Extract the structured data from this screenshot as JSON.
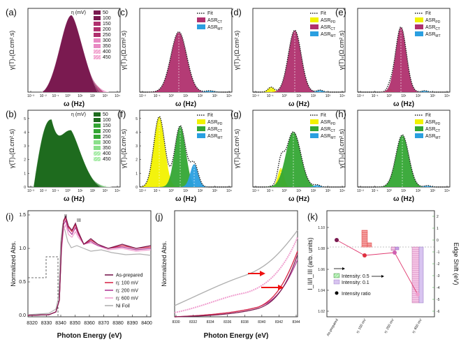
{
  "figure": {
    "panels_top": [
      {
        "id": "a",
        "label": "(a)",
        "type": "eta",
        "legend_title": "η (mV)",
        "legend": [
          "50",
          "100",
          "150",
          "200",
          "250",
          "300",
          "350",
          "400",
          "450"
        ],
        "ylabel": "γ(T)ₛ(Ω.cm².s)",
        "xlabel": "ω (Hz)",
        "yticks": [],
        "xticks": []
      },
      {
        "id": "c",
        "label": "(c)",
        "type": "asr",
        "legend": [
          {
            "key": "fit",
            "text": "Fit"
          },
          {
            "key": "ct",
            "text": "ASR",
            "sub": "CT"
          },
          {
            "key": "mt",
            "text": "ASR",
            "sub": "MT"
          }
        ],
        "ylabel": "γ(T)ₛ(Ω.cm².s)",
        "xlabel": "ω (Hz)",
        "yticks": [],
        "xticks": []
      },
      {
        "id": "d",
        "label": "(d)",
        "type": "asr",
        "legend": [
          {
            "key": "fit",
            "text": "Fit"
          },
          {
            "key": "pd",
            "text": "ASR",
            "sub": "PD"
          },
          {
            "key": "ct",
            "text": "ASR",
            "sub": "CT"
          },
          {
            "key": "mt",
            "text": "ASR",
            "sub": "MT"
          }
        ],
        "ylabel": "γ(T)ₛ(Ω.cm².s)",
        "xlabel": "ω (Hz)",
        "yticks": [],
        "xticks": []
      },
      {
        "id": "e",
        "label": "(e)",
        "type": "asr",
        "legend": [
          {
            "key": "fit",
            "text": "Fit"
          },
          {
            "key": "pd",
            "text": "ASR",
            "sub": "PD"
          },
          {
            "key": "ct",
            "text": "ASR",
            "sub": "CT"
          },
          {
            "key": "mt",
            "text": "ASR",
            "sub": "MT"
          }
        ],
        "ylabel": "γ(T)ₛ(Ω.cm².s)",
        "xlabel": "ω (Hz)",
        "yticks": [],
        "xticks": []
      }
    ],
    "panels_mid": [
      {
        "id": "b",
        "label": "(b)",
        "type": "eta",
        "legend_title": "η (mV)",
        "legend": [
          "50",
          "100",
          "150",
          "200",
          "250",
          "300",
          "350",
          "400",
          "450"
        ],
        "ylabel": "γ(T)ₛ(Ω.cm².s)",
        "xlabel": "ω (Hz)",
        "yticks": [],
        "xticks": []
      },
      {
        "id": "f",
        "label": "(f)",
        "type": "asr",
        "legend": [
          {
            "key": "fit",
            "text": "Fit"
          },
          {
            "key": "pd",
            "text": "ASR",
            "sub": "PD"
          },
          {
            "key": "ct",
            "text": "ASR",
            "sub": "CT"
          },
          {
            "key": "mt",
            "text": "ASR",
            "sub": "MT"
          }
        ],
        "ylabel": "γ(T)ₛ(Ω.cm².s)",
        "xlabel": "ω (Hz)",
        "yticks": [],
        "xticks": []
      },
      {
        "id": "g",
        "label": "(g)",
        "type": "asr",
        "legend": [
          {
            "key": "fit",
            "text": "Fit"
          },
          {
            "key": "pd",
            "text": "ASR",
            "sub": "PD"
          },
          {
            "key": "ct",
            "text": "ASR",
            "sub": "CT"
          },
          {
            "key": "mt",
            "text": "ASR",
            "sub": "MT"
          }
        ],
        "ylabel": "γ(T)ₛ(Ω.cm².s)",
        "xlabel": "ω (Hz)",
        "yticks": [],
        "xticks": []
      },
      {
        "id": "h",
        "label": "(h)",
        "type": "asr",
        "legend": [
          {
            "key": "fit",
            "text": "Fit"
          },
          {
            "key": "pd",
            "text": "ASR",
            "sub": "PD"
          },
          {
            "key": "ct",
            "text": "ASR",
            "sub": "CT"
          },
          {
            "key": "mt",
            "text": "ASR",
            "sub": "MT"
          }
        ],
        "ylabel": "γ(T)ₛ(Ω.cm².s)",
        "xlabel": "ω (Hz)",
        "yticks": [],
        "xticks": []
      }
    ],
    "xticks_freq": [
      "10⁻³",
      "10⁻²",
      "10⁻¹",
      "10⁰",
      "10¹",
      "10²",
      "10³",
      "10⁴"
    ],
    "xticks_freq_c": [
      "10⁻²",
      "10⁻¹",
      "10⁰",
      "10¹",
      "10²",
      "10³",
      "10⁴"
    ],
    "yticks_b": [
      "0",
      "1",
      "2",
      "3",
      "4",
      "5"
    ],
    "yticks_f": [
      "0",
      "1",
      "2",
      "3",
      "4",
      "5"
    ],
    "colors": {
      "magenta_dark": "#7a1a50",
      "magenta": "#b0306e",
      "magenta_light": "#e889c3",
      "green_dark": "#1e6b1e",
      "green": "#34a634",
      "green_light": "#8be08b",
      "yellow": "#f2f200",
      "blue": "#2a9fe0"
    },
    "panel_i": {
      "label": "(i)",
      "ylabel": "Normalized Abs.",
      "xlabel": "Photon Energy (eV)",
      "xticks": [
        "8320",
        "8330",
        "8340",
        "8350",
        "8360",
        "8370",
        "8380",
        "8390",
        "8400"
      ],
      "yticks": [
        "0.0",
        "0.5",
        "1.0",
        "1.5"
      ],
      "annotations": [
        "II",
        "III"
      ],
      "legend": [
        {
          "text": "As-prepared",
          "color": "#7a1a50"
        },
        {
          "text": "η: 100 mV",
          "color": "#d82c4c"
        },
        {
          "text": "η: 200 mV",
          "color": "#b03a98"
        },
        {
          "text": "η: 600 mV",
          "color": "#f0a0d0"
        },
        {
          "text": "Ni Foil",
          "color": "#b0b0b0"
        }
      ]
    },
    "panel_j": {
      "label": "(j)",
      "ylabel": "Normalized Abs.",
      "xlabel": "Photon Energy (eV)",
      "xticks": [
        "8330",
        "8332",
        "8334",
        "8336",
        "8338",
        "8340",
        "8342",
        "8344"
      ]
    },
    "panel_k": {
      "label": "(k)",
      "ylabel": "I_II/I_III (arb. units)",
      "ylabel_right": "Edge Shift (eV)",
      "yticks": [
        "1.02",
        "1.04",
        "1.06",
        "1.08",
        "1.10"
      ],
      "yticks_right": [
        "2",
        "1",
        "0",
        "-1",
        "-2",
        "-3",
        "-4",
        "-5",
        "-6"
      ],
      "xcats": [
        "As-prepared",
        "η: 100 mV",
        "η: 200 mV",
        "η: 600 mV"
      ],
      "legend": [
        "Intensity: 0.5",
        "Intensity: 0.1",
        "Intensity ratio"
      ]
    }
  }
}
